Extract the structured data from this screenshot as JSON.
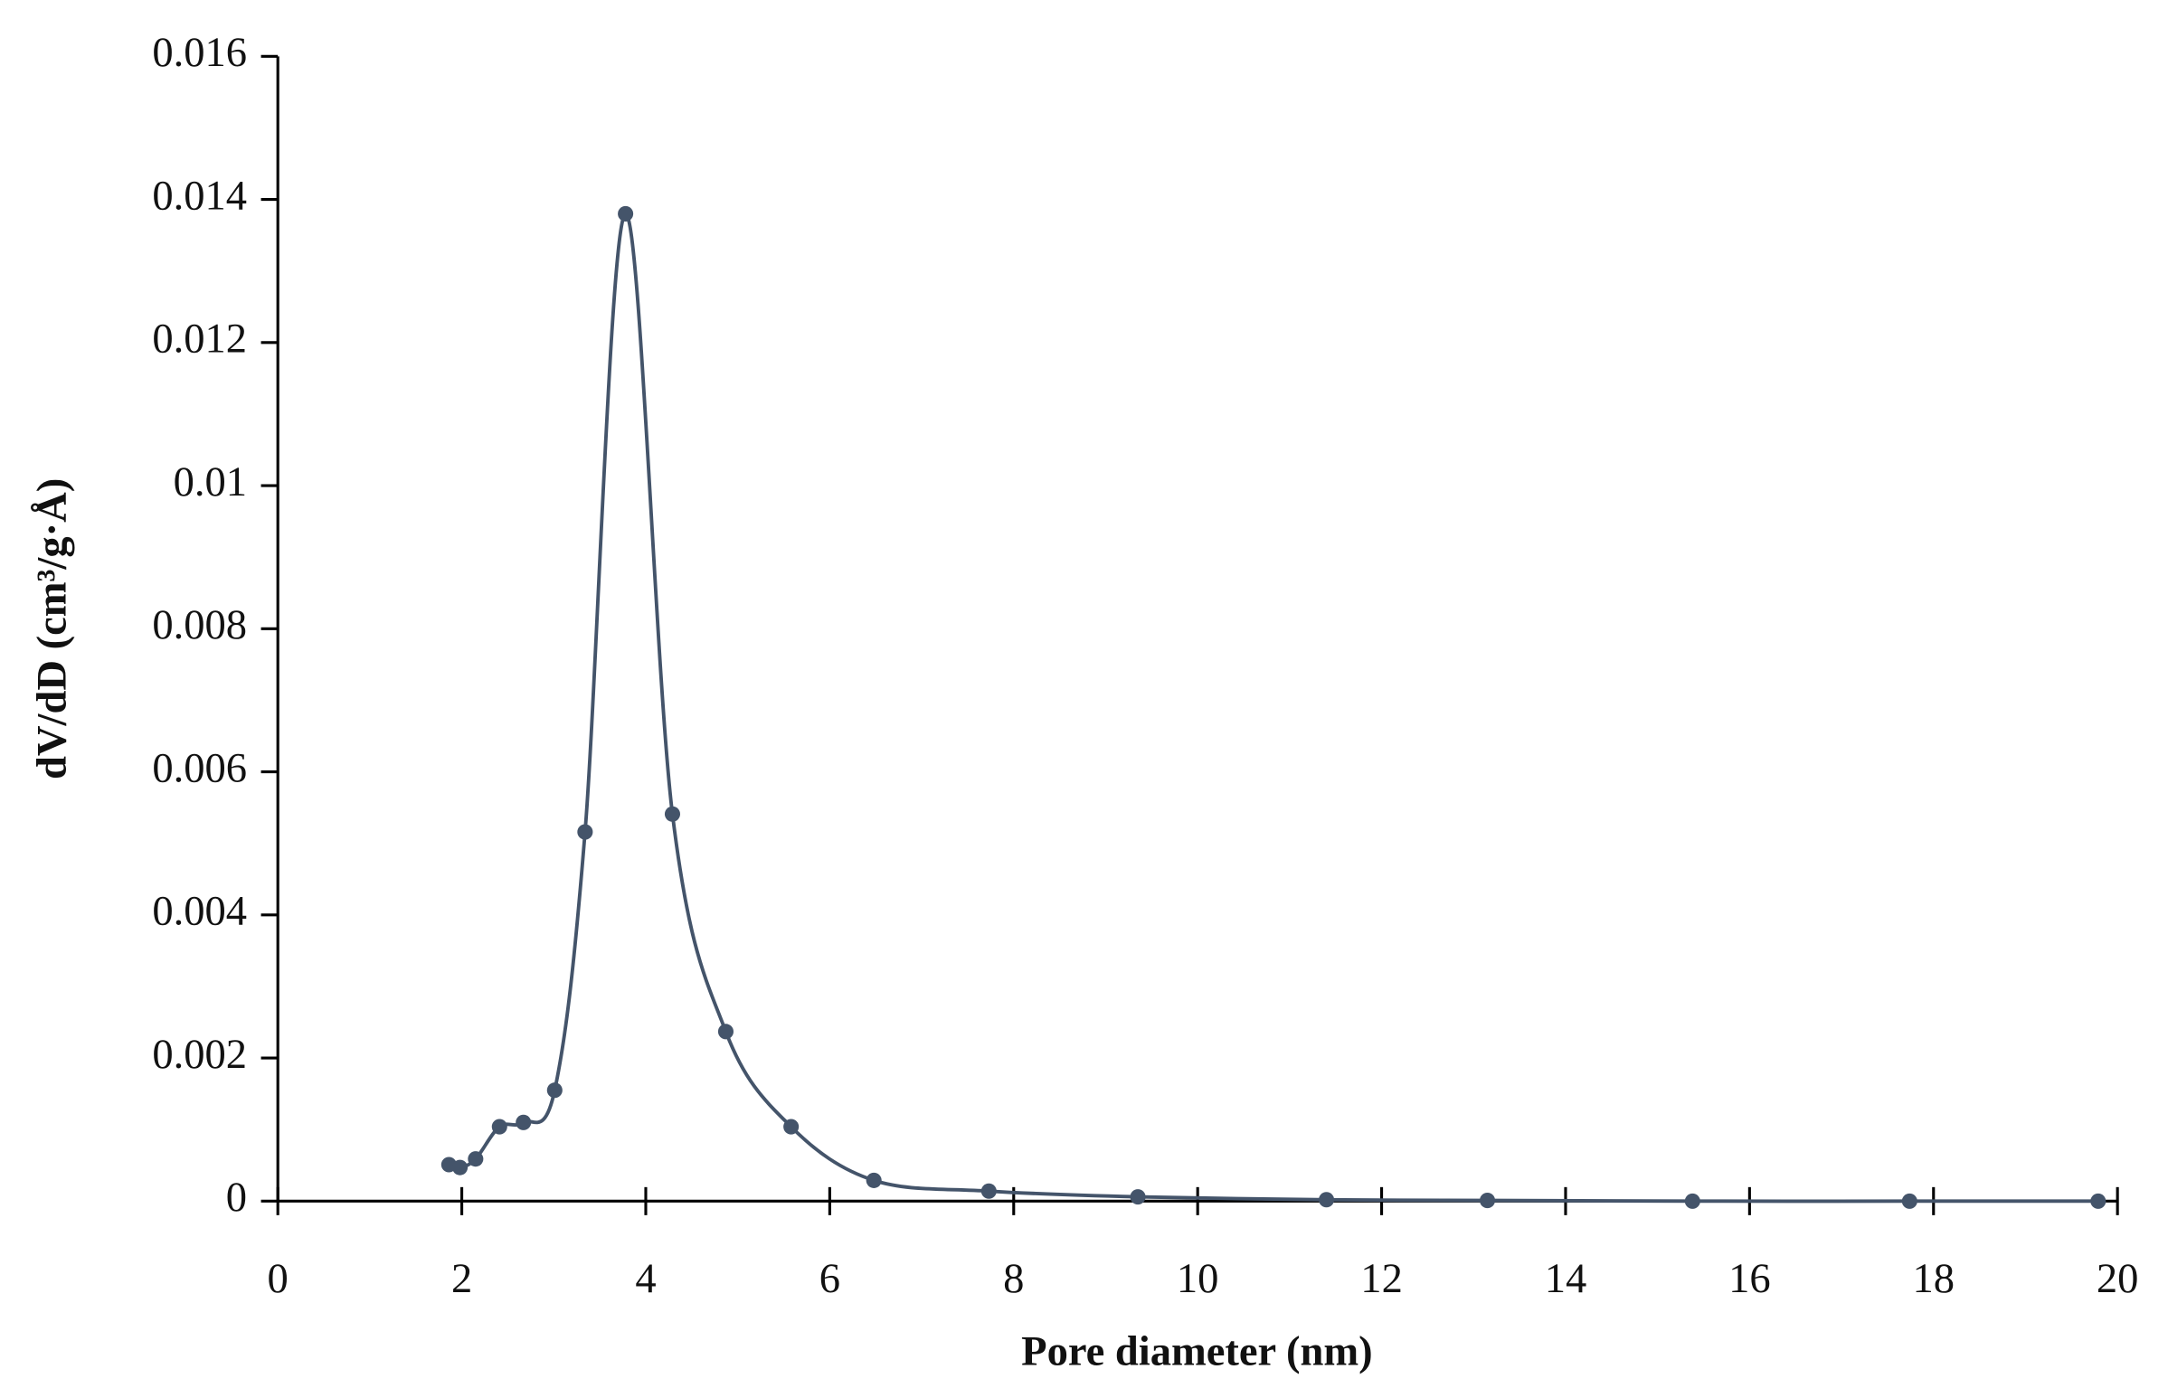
{
  "chart_data": {
    "type": "line",
    "x_label": "Pore diameter (nm)",
    "y_label": "dV/dD (cm³/g·Å)",
    "x": [
      1.86,
      1.98,
      2.15,
      2.41,
      2.67,
      3.01,
      3.34,
      3.78,
      4.29,
      4.87,
      5.58,
      6.48,
      7.73,
      9.35,
      11.4,
      13.15,
      15.38,
      17.74,
      19.79
    ],
    "series": [
      {
        "name": "dV/dD",
        "color": "#44546a",
        "values": [
          0.00051,
          0.00047,
          0.00059,
          0.00104,
          0.0011,
          0.00155,
          0.00516,
          0.0138,
          0.00541,
          0.00237,
          0.00104,
          0.00029,
          0.00014,
          6e-05,
          2e-05,
          1e-05,
          0,
          0,
          0
        ]
      }
    ],
    "xlim": [
      0,
      20
    ],
    "xticks": [
      0,
      2,
      4,
      6,
      8,
      10,
      12,
      14,
      16,
      18,
      20
    ],
    "ylim": [
      0,
      0.016
    ],
    "yticks": [
      0,
      0.002,
      0.004,
      0.006,
      0.008,
      0.01,
      0.012,
      0.014,
      0.016
    ],
    "smooth": true,
    "markers": true
  }
}
